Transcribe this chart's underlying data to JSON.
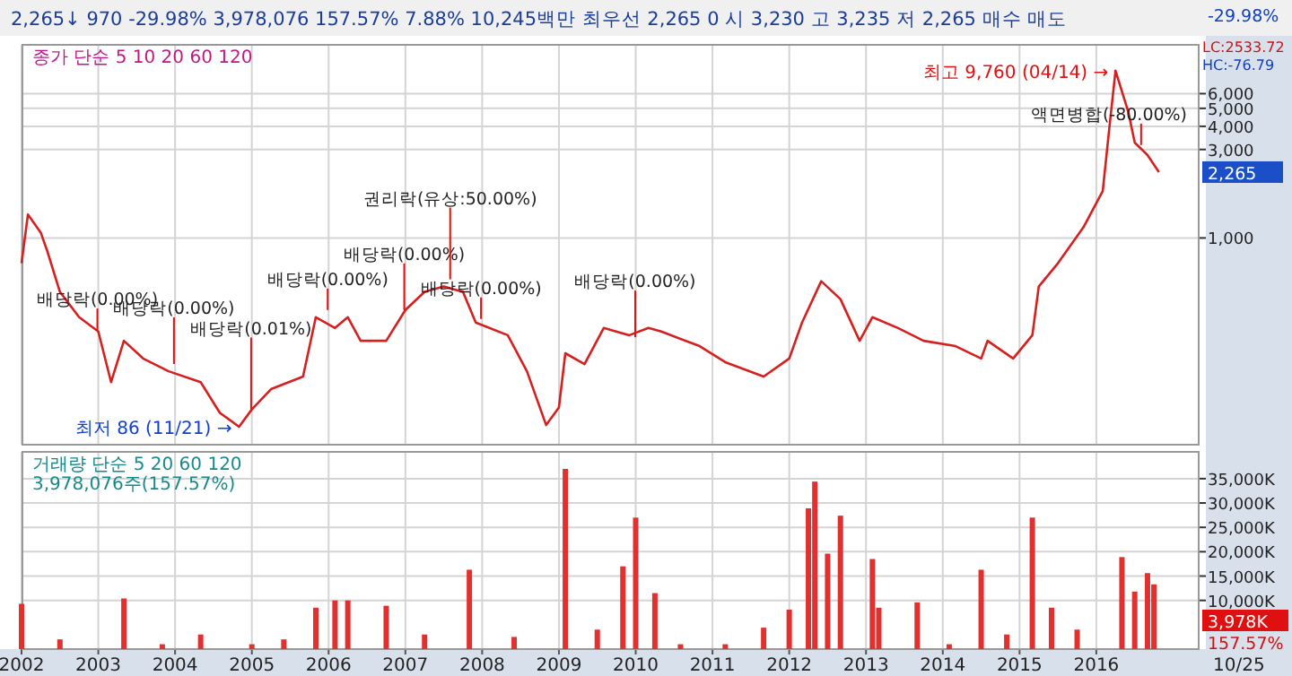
{
  "chart_data": [
    {
      "type": "line",
      "subtitle": "2,265↓   970  -29.98%   3,978,076  157.57%   7.88%   10,245백만  최우선  2,265   0   시 3,230  고 3,235  저 2,265   매수  매도",
      "log": "y",
      "grid": true,
      "tick_labels": "y",
      "xlim": [
        "2002-01",
        "2017-05"
      ],
      "xticks": [
        {
          "value": "2002",
          "label": null
        },
        {
          "value": "2003",
          "label": null
        },
        {
          "value": "2004",
          "label": null
        },
        {
          "value": "2005",
          "label": null
        },
        {
          "value": "2006",
          "label": null
        },
        {
          "value": "2007",
          "label": null
        },
        {
          "value": "2008",
          "label": null
        },
        {
          "value": "2009",
          "label": null
        },
        {
          "value": "2010",
          "label": null
        },
        {
          "value": "2011",
          "label": null
        },
        {
          "value": "2012",
          "label": null
        },
        {
          "value": "2013",
          "label": null
        },
        {
          "value": "2014",
          "label": null
        },
        {
          "value": "2015",
          "label": null
        },
        {
          "value": "2016",
          "label": null
        }
      ],
      "ylim": [
        76.79,
        11000
      ],
      "yticks": [
        {
          "value": 1000,
          "label": "1,000"
        },
        {
          "value": 3000,
          "label": "3,000"
        },
        {
          "value": 4000,
          "label": "4,000"
        },
        {
          "value": 5000,
          "label": "5,000"
        },
        {
          "value": 6000,
          "label": "6,000"
        }
      ],
      "series": [
        {
          "color": "#d62020",
          "x": [
            "2002-01",
            "2002-02",
            "2002-04",
            "2002-05",
            "2002-07",
            "2002-10",
            "2003-01",
            "2003-03",
            "2003-05",
            "2003-08",
            "2003-12",
            "2004-05",
            "2004-08",
            "2004-11",
            "2005-01",
            "2005-04",
            "2005-09",
            "2005-11",
            "2006-02",
            "2006-04",
            "2006-06",
            "2006-10",
            "2007-01",
            "2007-04",
            "2007-07",
            "2007-10",
            "2007-12",
            "2008-05",
            "2008-08",
            "2008-11",
            "2009-01",
            "2009-02",
            "2009-05",
            "2009-08",
            "2009-12",
            "2010-03",
            "2010-05",
            "2010-11",
            "2011-03",
            "2011-09",
            "2012-01",
            "2012-03",
            "2012-06",
            "2012-09",
            "2012-12",
            "2013-02",
            "2013-06",
            "2013-10",
            "2014-03",
            "2014-07",
            "2014-08",
            "2014-12",
            "2015-03",
            "2015-04",
            "2015-07",
            "2015-11",
            "2016-02",
            "2016-03",
            "2016-04",
            "2016-06",
            "2016-07",
            "2016-09",
            "2016-10-25"
          ],
          "values": [
            731,
            1338,
            1069,
            855,
            512,
            374,
            313,
            167,
            279,
            224,
            191,
            167,
            114,
            96,
            119,
            153,
            179,
            374,
            327,
            374,
            279,
            279,
            409,
            512,
            547,
            512,
            350,
            299,
            191,
            98,
            122,
            239,
            209,
            327,
            299,
            327,
            313,
            261,
            214,
            179,
            224,
            350,
            585,
            468,
            279,
            374,
            327,
            279,
            261,
            224,
            279,
            224,
            299,
            547,
            731,
            1144,
            1788,
            3826,
            7980,
            4783,
            3270,
            2797,
            2265
          ]
        }
      ],
      "annotations": [
        "종가 단순 5 10 20 60 120",
        "LC:2533.72",
        "HC:-76.79",
        "-29.98%",
        {
          "text": "2,265",
          "x": "2016-10-25",
          "y": 2265
        },
        "최고 9,760 (04/14) →",
        "최저 86 (11/21) →",
        {
          "text": "배당락(0.00%)",
          "x": "2002-12-27",
          "y": 305
        },
        {
          "text": "배당락(0.00%)",
          "x": "2003-12-26",
          "y": 200
        },
        {
          "text": "배당락(0.01%)",
          "x": "2004-12-28",
          "y": 114
        },
        {
          "text": "배당락(0.00%)",
          "x": "2005-12-27",
          "y": 391
        },
        {
          "text": "배당락(0.00%)",
          "x": "2006-12-26",
          "y": 391
        },
        {
          "text": "권리락(유상:50.00%)",
          "x": "2007-08",
          "y": 572
        },
        {
          "text": "배당락(0.00%)",
          "x": "2007-12-26",
          "y": 350
        },
        {
          "text": "배당락(0.00%)",
          "x": "2009-12-29",
          "y": 279
        },
        {
          "text": "액면병합(-80.00%)",
          "x": "2016-08",
          "y": 3030
        }
      ]
    },
    {
      "type": "bar",
      "grid": true,
      "xlim": [
        "2002-01",
        "2017-05"
      ],
      "xticks": [
        {
          "value": "2002",
          "label": "2002"
        },
        {
          "value": "2003",
          "label": "2003"
        },
        {
          "value": "2004",
          "label": "2004"
        },
        {
          "value": "2005",
          "label": "2005"
        },
        {
          "value": "2006",
          "label": "2006"
        },
        {
          "value": "2007",
          "label": "2007"
        },
        {
          "value": "2008",
          "label": "2008"
        },
        {
          "value": "2009",
          "label": "2009"
        },
        {
          "value": "2010",
          "label": "2010"
        },
        {
          "value": "2011",
          "label": "2011"
        },
        {
          "value": "2012",
          "label": "2012"
        },
        {
          "value": "2013",
          "label": "2013"
        },
        {
          "value": "2014",
          "label": "2014"
        },
        {
          "value": "2015",
          "label": "2015"
        },
        {
          "value": "2016",
          "label": "2016"
        }
      ],
      "ylim": [
        0,
        40500
      ],
      "yticks": [
        {
          "value": 10000,
          "label": "10,000K"
        },
        {
          "value": 15000,
          "label": "15,000K"
        },
        {
          "value": 20000,
          "label": "20,000K"
        },
        {
          "value": 25000,
          "label": "25,000K"
        },
        {
          "value": 30000,
          "label": "30,000K"
        },
        {
          "value": 35000,
          "label": "35,000K"
        }
      ],
      "series": [
        {
          "color": "#e03030",
          "x": [
            "2002-01",
            "2002-07",
            "2003-05",
            "2003-11",
            "2004-05",
            "2005-01",
            "2005-06",
            "2005-11",
            "2006-02",
            "2006-04",
            "2006-10",
            "2007-04",
            "2007-11",
            "2008-06",
            "2009-02",
            "2009-07",
            "2009-11",
            "2010-01",
            "2010-04",
            "2010-08",
            "2011-03",
            "2011-09",
            "2012-01",
            "2012-04",
            "2012-05",
            "2012-07",
            "2012-09",
            "2013-02",
            "2013-03",
            "2013-09",
            "2014-02",
            "2014-07",
            "2014-11",
            "2015-03",
            "2015-06",
            "2015-10",
            "2016-05",
            "2016-07",
            "2016-09",
            "2016-10"
          ],
          "values": [
            9300,
            2000,
            10400,
            1000,
            3000,
            1000,
            2000,
            8500,
            10000,
            10000,
            8900,
            3000,
            16300,
            2500,
            37000,
            4000,
            17000,
            27000,
            11500,
            1000,
            1000,
            4400,
            8100,
            28900,
            34400,
            19600,
            27400,
            18500,
            8500,
            9600,
            1000,
            16300,
            3000,
            27000,
            8500,
            4000,
            18900,
            11800,
            15600,
            13300
          ]
        }
      ],
      "annotations": [
        "거래량 단순 5 20 60 120",
        "3,978,076주(157.57%)",
        "3,978K",
        "157.57%",
        "10/25"
      ]
    }
  ]
}
